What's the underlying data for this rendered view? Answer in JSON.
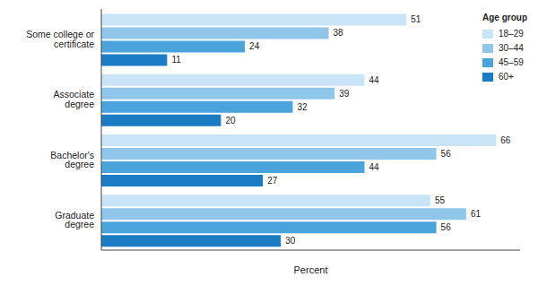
{
  "chart_data": {
    "type": "bar",
    "orientation": "horizontal",
    "categories": [
      "Some college or certificate",
      "Associate degree",
      "Bachelor's degree",
      "Graduate degree"
    ],
    "series": [
      {
        "name": "18–29",
        "color": "#c9e4f6",
        "values": [
          51,
          44,
          66,
          55
        ]
      },
      {
        "name": "30–44",
        "color": "#8fc6ea",
        "values": [
          38,
          39,
          56,
          61
        ]
      },
      {
        "name": "45–59",
        "color": "#4ba3dc",
        "values": [
          24,
          32,
          44,
          56
        ]
      },
      {
        "name": "60+",
        "color": "#1b7bc3",
        "values": [
          11,
          20,
          27,
          30
        ]
      }
    ],
    "x_label": "Percent",
    "xlim": [
      0,
      70
    ],
    "legend": "upper right",
    "legend_title": "Age group",
    "data_labels": true,
    "tick_labels": "y"
  }
}
